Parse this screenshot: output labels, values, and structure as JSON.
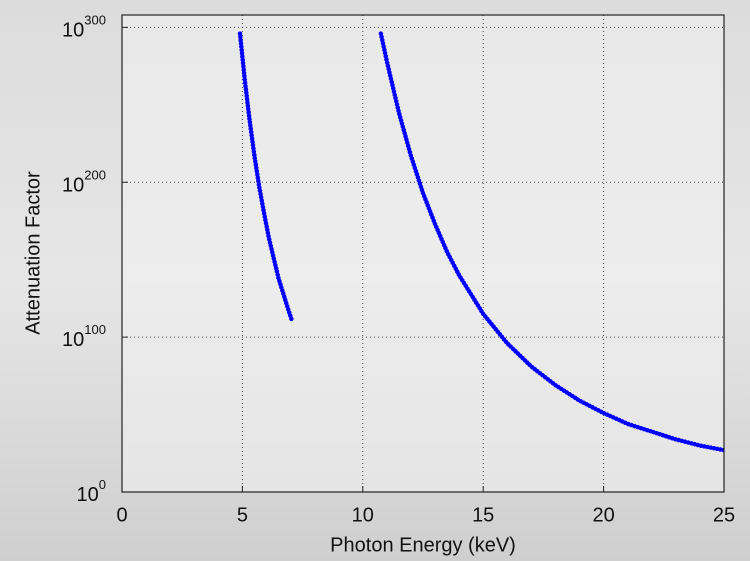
{
  "chart_data": {
    "type": "scatter",
    "xlabel": "Photon Energy (keV)",
    "ylabel": "Attenuation Factor",
    "xlim": [
      0,
      25
    ],
    "xticks": [
      0,
      5,
      10,
      15,
      20,
      25
    ],
    "ylim": [
      1,
      1e+308
    ],
    "yticks": [
      {
        "value": 1,
        "label": "10^0"
      },
      {
        "value": 1e+100,
        "label": "10^100"
      },
      {
        "value": 1e+200,
        "label": "10^200"
      },
      {
        "value": 1e+300,
        "label": "10^300"
      }
    ],
    "yscale": "log",
    "grid": true,
    "series": [
      {
        "color": "#0000ff",
        "x": [
          4.9,
          5.1,
          5.3,
          5.5,
          5.7,
          5.9,
          6.1,
          6.3,
          6.5,
          6.7,
          6.9,
          7.05
        ],
        "values": [
          1e+296,
          1e+266,
          1e+240,
          1e+217,
          1e+197,
          1e+180,
          1e+164,
          1e+151,
          1e+138,
          1e+128,
          1e+118,
          1e+111
        ]
      },
      {
        "color": "#0000ff",
        "x": [
          10.75,
          11,
          11.5,
          12,
          12.5,
          13,
          13.5,
          14,
          15,
          16,
          17,
          18,
          19,
          20,
          21,
          22,
          23,
          24,
          25
        ],
        "values": [
          1e+296,
          1e+278,
          1e+245,
          1e+217,
          1e+193,
          1e+173,
          1e+155,
          1e+140,
          1e+115,
          1e+96,
          1e+81,
          1e+69,
          1e+59,
          1e+51,
          1e+44,
          1e+39,
          1e+34,
          1e+30,
          1e+27
        ]
      }
    ]
  }
}
